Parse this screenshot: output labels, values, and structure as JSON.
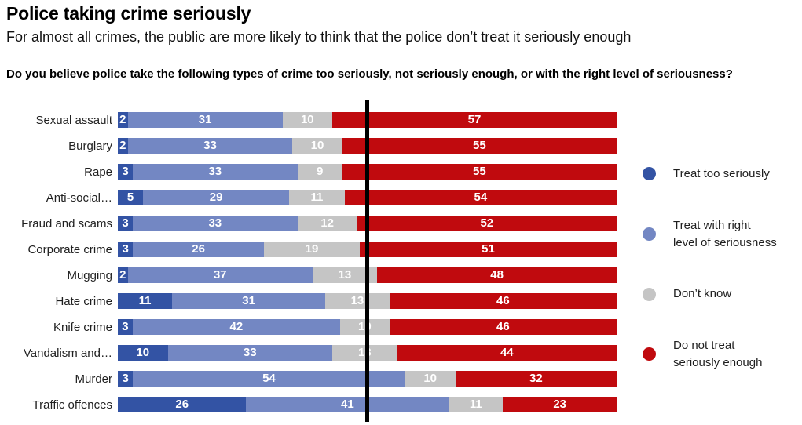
{
  "header": {
    "title": "Police taking crime seriously",
    "subtitle": "For almost all crimes, the public are more likely to think that the police don’t treat it seriously enough",
    "question": "Do you believe police take the following types of crime too seriously, not seriously enough, or with the right level of seriousness?"
  },
  "colors": {
    "treat_too_seriously": "#3353A4",
    "right_level": "#7387C3",
    "dont_know": "#C5C5C5",
    "not_seriously_enough": "#C00A0E",
    "marker": "#000000",
    "value_label": "#FFFFFF"
  },
  "chart_data": {
    "type": "bar",
    "orientation": "horizontal",
    "stacked": true,
    "title": "Do you believe police take the following types of crime too seriously, not seriously enough, or with the right level of seriousness?",
    "xlabel": "",
    "ylabel": "",
    "xlim": [
      0,
      100
    ],
    "grid": false,
    "legend_position": "right",
    "marker": {
      "value": 50,
      "axis_max": 100
    },
    "categories": [
      "Sexual assault",
      "Burglary",
      "Rape",
      "Anti-social…",
      "Fraud and scams",
      "Corporate crime",
      "Mugging",
      "Hate crime",
      "Knife crime",
      "Vandalism and…",
      "Murder",
      "Traffic offences"
    ],
    "series": [
      {
        "name": "Treat too seriously",
        "color_key": "treat_too_seriously",
        "values": [
          2,
          2,
          3,
          5,
          3,
          3,
          2,
          11,
          3,
          10,
          3,
          26
        ]
      },
      {
        "name": "Treat with right level of seriousness",
        "color_key": "right_level",
        "values": [
          31,
          33,
          33,
          29,
          33,
          26,
          37,
          31,
          42,
          33,
          54,
          41
        ]
      },
      {
        "name": "Don’t know",
        "color_key": "dont_know",
        "values": [
          10,
          10,
          9,
          11,
          12,
          19,
          13,
          13,
          10,
          13,
          10,
          11
        ]
      },
      {
        "name": "Do not treat seriously enough",
        "color_key": "not_seriously_enough",
        "values": [
          57,
          55,
          55,
          54,
          52,
          51,
          48,
          46,
          46,
          44,
          32,
          23
        ]
      }
    ]
  },
  "legend": {
    "items": [
      {
        "label": "Treat too seriously",
        "color_key": "treat_too_seriously"
      },
      {
        "label": "Treat with right\nlevel of seriousness",
        "color_key": "right_level"
      },
      {
        "label": "Don’t know",
        "color_key": "dont_know"
      },
      {
        "label": "Do not treat\nseriously enough",
        "color_key": "not_seriously_enough"
      }
    ]
  }
}
